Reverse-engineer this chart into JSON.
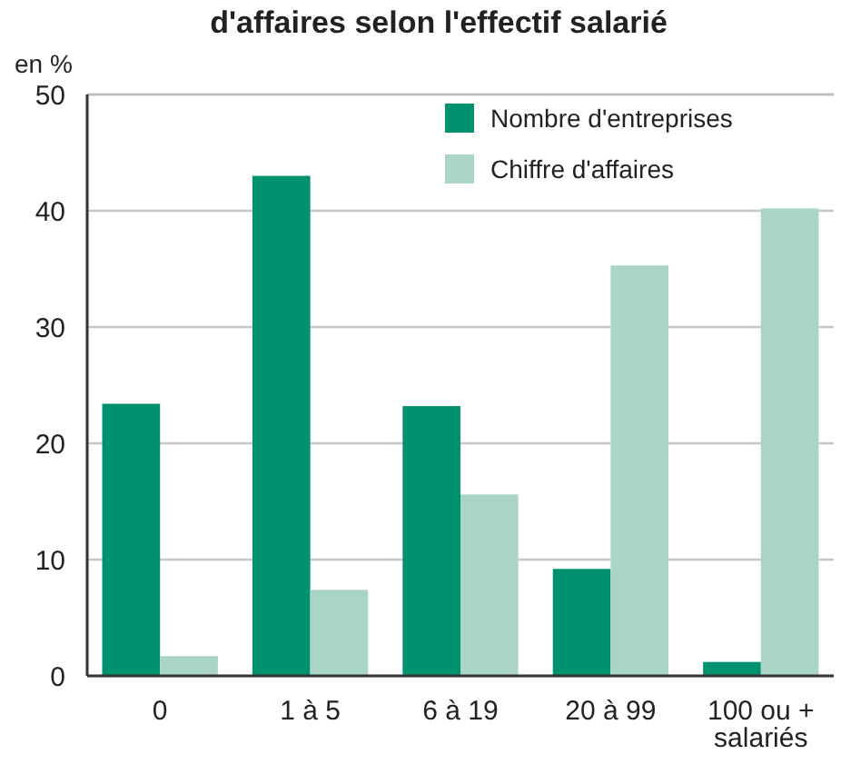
{
  "chart_data": {
    "type": "bar",
    "title": "d'affaires selon l'effectif salarié",
    "ylabel": "en %",
    "categories": [
      "0",
      "1 à 5",
      "6 à 19",
      "20 à 99",
      "100 ou +\nsalariés"
    ],
    "series": [
      {
        "name": "Nombre d'entreprises",
        "color": "#00916e",
        "values": [
          23.4,
          43,
          23.2,
          9.2,
          1.2
        ]
      },
      {
        "name": "Chiffre d'affaires",
        "color": "#abd4c9",
        "values": [
          1.7,
          7.4,
          15.6,
          35.3,
          40.2
        ]
      }
    ],
    "ylim": [
      0,
      50
    ],
    "yticks": [
      0,
      10,
      20,
      30,
      40,
      50
    ],
    "grid": "y",
    "legend": "top right"
  }
}
